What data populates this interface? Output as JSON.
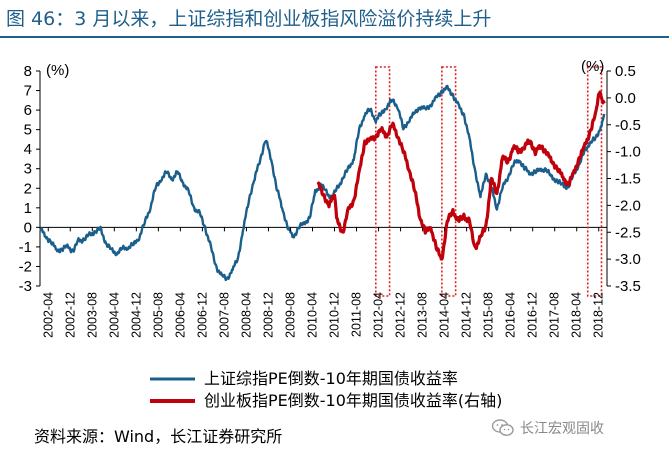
{
  "header": {
    "title": "图 46：3 月以来，上证综指和创业板指风险溢价持续上升"
  },
  "footer": {
    "source": "资料来源：Wind，长江证券研究所"
  },
  "watermark": {
    "text": "长江宏观固收",
    "icon": "wechat-icon"
  },
  "chart_data": {
    "type": "line",
    "left_axis": {
      "unit": "(%)",
      "ylim": [
        -3,
        8
      ],
      "ticks": [
        "8",
        "7",
        "6",
        "5",
        "4",
        "3",
        "2",
        "1",
        "0",
        "-1",
        "-2",
        "-3"
      ]
    },
    "right_axis": {
      "unit": "(%)",
      "ylim": [
        -3.5,
        0.5
      ],
      "ticks": [
        "0.5",
        "0.0",
        "-0.5",
        "-1.0",
        "-1.5",
        "-2.0",
        "-2.5",
        "-3.0",
        "-3.5"
      ]
    },
    "x_ticks": [
      "2002-04",
      "2002-12",
      "2003-08",
      "2004-04",
      "2004-12",
      "2005-08",
      "2006-04",
      "2006-12",
      "2007-08",
      "2008-04",
      "2008-12",
      "2009-08",
      "2010-04",
      "2010-12",
      "2011-08",
      "2012-04",
      "2012-12",
      "2013-08",
      "2014-04",
      "2014-12",
      "2015-08",
      "2016-04",
      "2016-12",
      "2017-08",
      "2018-04",
      "2018-12"
    ],
    "x_range": [
      "2002-01",
      "2019-03"
    ],
    "legend_placement": "bottom-center",
    "highlight_color": "#e02020",
    "highlights": [
      {
        "start": "2012-03",
        "end": "2012-08"
      },
      {
        "start": "2014-03",
        "end": "2014-08"
      },
      {
        "start": "2018-08",
        "end": "2019-01"
      }
    ],
    "series": [
      {
        "name": "上证综指PE倒数-10年期国债收益率",
        "axis": "left",
        "color": "#1a5e8c",
        "points": [
          [
            "2002-01",
            0.0
          ],
          [
            "2002-03",
            -0.5
          ],
          [
            "2002-05",
            -0.7
          ],
          [
            "2002-07",
            -1.2
          ],
          [
            "2002-09",
            -1.1
          ],
          [
            "2002-11",
            -1.0
          ],
          [
            "2003-01",
            -1.2
          ],
          [
            "2003-03",
            -0.7
          ],
          [
            "2003-05",
            -0.6
          ],
          [
            "2003-07",
            -0.4
          ],
          [
            "2003-09",
            -0.2
          ],
          [
            "2003-11",
            -0.1
          ],
          [
            "2004-01",
            -0.8
          ],
          [
            "2004-03",
            -1.2
          ],
          [
            "2004-05",
            -1.3
          ],
          [
            "2004-07",
            -1.1
          ],
          [
            "2004-09",
            -1.0
          ],
          [
            "2004-11",
            -0.9
          ],
          [
            "2005-01",
            -0.5
          ],
          [
            "2005-03",
            0.2
          ],
          [
            "2005-05",
            1.0
          ],
          [
            "2005-07",
            2.0
          ],
          [
            "2005-09",
            2.5
          ],
          [
            "2005-11",
            2.8
          ],
          [
            "2006-01",
            2.5
          ],
          [
            "2006-03",
            2.8
          ],
          [
            "2006-05",
            2.3
          ],
          [
            "2006-07",
            1.8
          ],
          [
            "2006-09",
            1.0
          ],
          [
            "2006-11",
            0.7
          ],
          [
            "2007-01",
            0.0
          ],
          [
            "2007-03",
            -1.0
          ],
          [
            "2007-05",
            -2.0
          ],
          [
            "2007-07",
            -2.5
          ],
          [
            "2007-09",
            -2.6
          ],
          [
            "2007-11",
            -2.2
          ],
          [
            "2008-01",
            -1.5
          ],
          [
            "2008-03",
            0.0
          ],
          [
            "2008-05",
            1.5
          ],
          [
            "2008-07",
            2.5
          ],
          [
            "2008-09",
            3.5
          ],
          [
            "2008-11",
            4.5
          ],
          [
            "2009-01",
            3.5
          ],
          [
            "2009-03",
            2.0
          ],
          [
            "2009-05",
            1.0
          ],
          [
            "2009-07",
            0.0
          ],
          [
            "2009-09",
            -0.5
          ],
          [
            "2009-11",
            0.0
          ],
          [
            "2010-01",
            0.2
          ],
          [
            "2010-03",
            0.5
          ],
          [
            "2010-05",
            1.8
          ],
          [
            "2010-07",
            2.2
          ],
          [
            "2010-09",
            1.8
          ],
          [
            "2010-11",
            1.5
          ],
          [
            "2011-01",
            2.0
          ],
          [
            "2011-03",
            2.5
          ],
          [
            "2011-05",
            3.0
          ],
          [
            "2011-07",
            3.5
          ],
          [
            "2011-09",
            5.0
          ],
          [
            "2011-11",
            5.8
          ],
          [
            "2012-01",
            6.0
          ],
          [
            "2012-03",
            5.5
          ],
          [
            "2012-05",
            5.8
          ],
          [
            "2012-07",
            6.2
          ],
          [
            "2012-09",
            6.5
          ],
          [
            "2012-11",
            6.2
          ],
          [
            "2013-01",
            5.0
          ],
          [
            "2013-03",
            5.5
          ],
          [
            "2013-05",
            5.8
          ],
          [
            "2013-07",
            6.2
          ],
          [
            "2013-09",
            6.0
          ],
          [
            "2013-11",
            6.3
          ],
          [
            "2014-01",
            6.6
          ],
          [
            "2014-03",
            7.0
          ],
          [
            "2014-05",
            7.1
          ],
          [
            "2014-07",
            6.8
          ],
          [
            "2014-09",
            6.2
          ],
          [
            "2014-11",
            5.8
          ],
          [
            "2015-01",
            4.5
          ],
          [
            "2015-03",
            3.0
          ],
          [
            "2015-05",
            1.5
          ],
          [
            "2015-07",
            2.8
          ],
          [
            "2015-09",
            2.0
          ],
          [
            "2015-11",
            1.0
          ],
          [
            "2016-01",
            2.0
          ],
          [
            "2016-03",
            2.6
          ],
          [
            "2016-05",
            3.2
          ],
          [
            "2016-07",
            3.5
          ],
          [
            "2016-09",
            3.0
          ],
          [
            "2016-11",
            2.8
          ],
          [
            "2017-01",
            2.8
          ],
          [
            "2017-03",
            3.0
          ],
          [
            "2017-05",
            2.9
          ],
          [
            "2017-07",
            2.6
          ],
          [
            "2017-09",
            2.3
          ],
          [
            "2017-11",
            2.2
          ],
          [
            "2018-01",
            2.0
          ],
          [
            "2018-03",
            2.8
          ],
          [
            "2018-05",
            3.2
          ],
          [
            "2018-07",
            4.0
          ],
          [
            "2018-09",
            4.3
          ],
          [
            "2018-11",
            4.6
          ],
          [
            "2019-01",
            5.2
          ],
          [
            "2019-02",
            5.8
          ]
        ]
      },
      {
        "name": "创业板指PE倒数-10年期国债收益率(右轴)",
        "axis": "right",
        "color": "#c0000b",
        "points": [
          [
            "2010-06",
            -1.6
          ],
          [
            "2010-08",
            -1.8
          ],
          [
            "2010-10",
            -2.0
          ],
          [
            "2010-12",
            -1.8
          ],
          [
            "2011-01",
            -2.3
          ],
          [
            "2011-03",
            -2.5
          ],
          [
            "2011-05",
            -2.1
          ],
          [
            "2011-07",
            -1.9
          ],
          [
            "2011-09",
            -1.4
          ],
          [
            "2011-11",
            -0.8
          ],
          [
            "2012-01",
            -0.8
          ],
          [
            "2012-03",
            -0.7
          ],
          [
            "2012-05",
            -0.6
          ],
          [
            "2012-07",
            -0.7
          ],
          [
            "2012-09",
            -0.5
          ],
          [
            "2012-11",
            -0.7
          ],
          [
            "2013-01",
            -1.0
          ],
          [
            "2013-03",
            -1.3
          ],
          [
            "2013-05",
            -1.7
          ],
          [
            "2013-07",
            -2.2
          ],
          [
            "2013-09",
            -2.5
          ],
          [
            "2013-11",
            -2.4
          ],
          [
            "2014-01",
            -2.8
          ],
          [
            "2014-03",
            -3.0
          ],
          [
            "2014-05",
            -2.3
          ],
          [
            "2014-07",
            -2.1
          ],
          [
            "2014-09",
            -2.3
          ],
          [
            "2014-11",
            -2.2
          ],
          [
            "2015-01",
            -2.3
          ],
          [
            "2015-03",
            -2.8
          ],
          [
            "2015-05",
            -2.6
          ],
          [
            "2015-07",
            -2.4
          ],
          [
            "2015-09",
            -1.5
          ],
          [
            "2015-11",
            -1.8
          ],
          [
            "2016-01",
            -1.1
          ],
          [
            "2016-03",
            -1.2
          ],
          [
            "2016-05",
            -0.9
          ],
          [
            "2016-07",
            -1.0
          ],
          [
            "2016-09",
            -0.9
          ],
          [
            "2016-11",
            -0.8
          ],
          [
            "2017-01",
            -1.0
          ],
          [
            "2017-03",
            -0.9
          ],
          [
            "2017-05",
            -1.0
          ],
          [
            "2017-07",
            -1.2
          ],
          [
            "2017-09",
            -1.3
          ],
          [
            "2017-11",
            -1.5
          ],
          [
            "2018-01",
            -1.6
          ],
          [
            "2018-03",
            -1.4
          ],
          [
            "2018-05",
            -1.1
          ],
          [
            "2018-07",
            -0.9
          ],
          [
            "2018-09",
            -0.6
          ],
          [
            "2018-11",
            -0.3
          ],
          [
            "2018-12",
            0.1
          ],
          [
            "2019-01",
            0.0
          ],
          [
            "2019-02",
            -0.1
          ]
        ]
      }
    ]
  }
}
